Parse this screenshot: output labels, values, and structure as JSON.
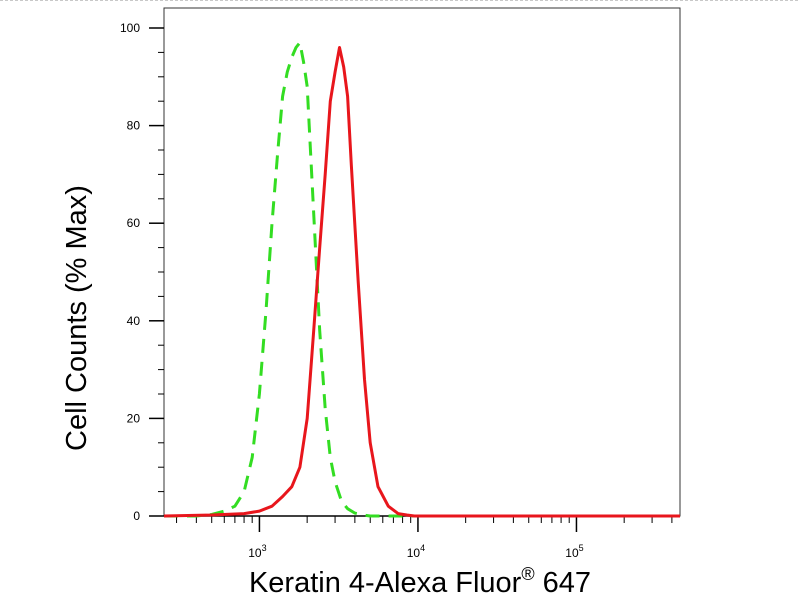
{
  "chart_data": {
    "type": "line",
    "xscale": "log",
    "xlabel_main": "Keratin 4-Alexa Fluor",
    "xlabel_sup": "®",
    "xlabel_tail": " 647",
    "ylabel": "Cell Counts (% Max)",
    "xlim": [
      250,
      450000
    ],
    "ylim": [
      0,
      100
    ],
    "yticks": [
      0,
      20,
      40,
      60,
      80,
      100
    ],
    "xticks": [
      {
        "value": 1000,
        "base": "10",
        "exp": "3"
      },
      {
        "value": 10000,
        "base": "10",
        "exp": "4"
      },
      {
        "value": 100000,
        "base": "10",
        "exp": "5"
      }
    ],
    "grid": false,
    "series": [
      {
        "color": "#e8161c",
        "dash": "solid",
        "x": [
          250,
          500,
          800,
          1000,
          1200,
          1400,
          1600,
          1800,
          2000,
          2200,
          2400,
          2600,
          2800,
          3000,
          3200,
          3400,
          3600,
          3800,
          4200,
          4600,
          5000,
          5600,
          6500,
          7500,
          8500,
          9500,
          12000,
          30000,
          100000,
          450000
        ],
        "y": [
          0,
          0.2,
          0.5,
          1,
          2,
          4,
          6,
          10,
          20,
          38,
          55,
          70,
          85,
          91,
          96,
          92,
          86,
          72,
          48,
          28,
          15,
          6,
          2,
          0.5,
          0.2,
          0,
          0,
          0,
          0,
          0
        ]
      },
      {
        "color": "#33dd22",
        "dash": "dashed",
        "x": [
          250,
          400,
          500,
          600,
          700,
          800,
          900,
          1000,
          1100,
          1200,
          1300,
          1400,
          1500,
          1600,
          1700,
          1800,
          1900,
          2000,
          2200,
          2400,
          2600,
          2800,
          3000,
          3300,
          3600,
          4000,
          4500,
          5000,
          6000,
          7000,
          10000,
          100000,
          450000
        ],
        "y": [
          0,
          0,
          0.3,
          1,
          2,
          5,
          12,
          25,
          42,
          60,
          74,
          86,
          91,
          94,
          96,
          97,
          93,
          88,
          62,
          38,
          22,
          12,
          7,
          3,
          1.5,
          0.6,
          0.2,
          0,
          0,
          0,
          0,
          0,
          0
        ]
      }
    ]
  }
}
